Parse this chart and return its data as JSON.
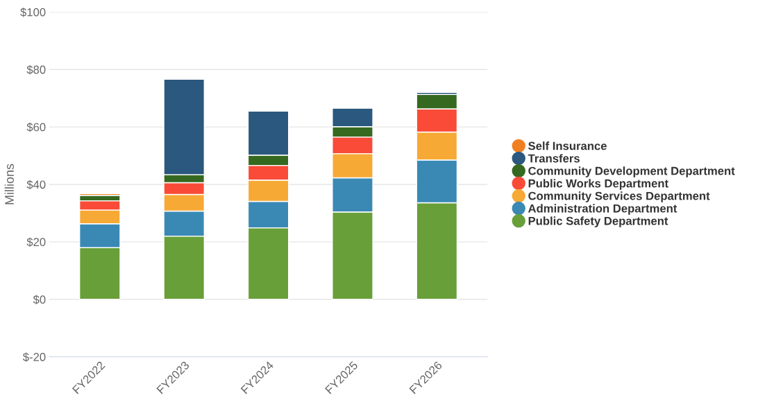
{
  "chart_data": {
    "type": "bar",
    "stacked": true,
    "ylabel": "Millions",
    "categories": [
      "FY2022",
      "FY2023",
      "FY2024",
      "FY2025",
      "FY2026"
    ],
    "series": [
      {
        "name": "Public Safety Department",
        "color": "#689f38",
        "values": [
          18.0,
          22.0,
          24.9,
          30.4,
          33.6
        ]
      },
      {
        "name": "Administration Department",
        "color": "#3a89b5",
        "values": [
          8.3,
          8.7,
          9.2,
          11.9,
          14.9
        ]
      },
      {
        "name": "Community Services Department",
        "color": "#f7a935",
        "values": [
          4.8,
          5.8,
          7.4,
          8.4,
          9.7
        ]
      },
      {
        "name": "Public Works Department",
        "color": "#f94b37",
        "values": [
          3.2,
          4.1,
          5.1,
          5.8,
          8.1
        ]
      },
      {
        "name": "Community Development Department",
        "color": "#356920",
        "values": [
          1.9,
          2.8,
          3.6,
          3.6,
          5.0
        ]
      },
      {
        "name": "Transfers",
        "color": "#2a587e",
        "values": [
          null,
          33.2,
          15.3,
          6.4,
          0.7
        ]
      },
      {
        "name": "Self Insurance",
        "color": "#f07f22",
        "values": [
          0.6,
          null,
          null,
          null,
          null
        ]
      }
    ],
    "ylim": [
      -20,
      100
    ],
    "yticks": [
      {
        "value": -20,
        "label": "$-20"
      },
      {
        "value": 0,
        "label": "$0"
      },
      {
        "value": 20,
        "label": "$20"
      },
      {
        "value": 40,
        "label": "$40"
      },
      {
        "value": 60,
        "label": "$60"
      },
      {
        "value": 80,
        "label": "$80"
      },
      {
        "value": 100,
        "label": "$100"
      }
    ],
    "grid": "y",
    "legend": "right"
  }
}
